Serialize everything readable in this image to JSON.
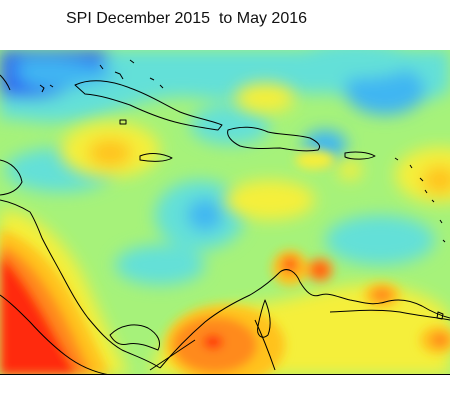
{
  "title": "SPI December 2015  to May 2016",
  "colors": {
    "background": "#a6f27a",
    "very_wet": "#2f6bf2",
    "wet": "#3fb6f2",
    "slightly_wet": "#63e0d8",
    "normal": "#a6f27a",
    "slightly_dry": "#f5ef3b",
    "dry": "#ffc21a",
    "very_dry": "#ff8a1c",
    "extreme_dry": "#ff2a10",
    "coastline": "#000000"
  }
}
